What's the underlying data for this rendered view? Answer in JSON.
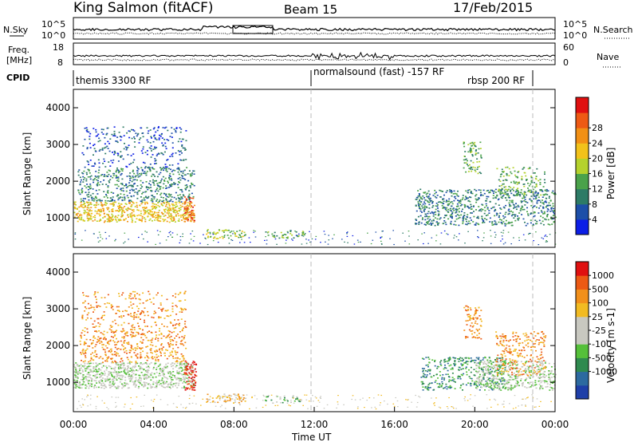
{
  "header": {
    "station": "King Salmon (fitACF)",
    "beam": "Beam 15",
    "date": "17/Feb/2015"
  },
  "noise_panel": {
    "left_label": "N.Sky",
    "right_label": "N.Search",
    "left_ticks": [
      "10^5",
      "10^0"
    ],
    "right_ticks": [
      "10^5",
      "10^0"
    ]
  },
  "freq_panel": {
    "left_label_line1": "Freq.",
    "left_label_line2": "[MHz]",
    "right_label": "Nave",
    "left_ticks": [
      "18",
      "8"
    ],
    "right_ticks": [
      "60",
      "0"
    ]
  },
  "cpid": {
    "label": "CPID",
    "segments": [
      {
        "name": "themis 3300 RF",
        "start_hour": 0,
        "end_hour": 12
      },
      {
        "name": "normalsound (fast) -157 RF",
        "start_hour": 12,
        "end_hour": 23
      },
      {
        "name": "rbsp 200 RF",
        "start_hour": 23,
        "end_hour": 24
      }
    ]
  },
  "chart_data": [
    {
      "type": "heatmap",
      "name": "power",
      "ylabel": "Slant Range [km]",
      "xlabel": "",
      "xlim": [
        0,
        24
      ],
      "ylim": [
        200,
        4500
      ],
      "yticks": [
        1000,
        2000,
        3000,
        4000
      ],
      "colorbar_label": "Power [dB]",
      "colorbar_ticks": [
        "4",
        "8",
        "12",
        "16",
        "20",
        "24",
        "28"
      ],
      "colorbar_colors": [
        "#0c1ee6",
        "#1d4fa8",
        "#2d7b66",
        "#4aa24a",
        "#b5d22c",
        "#f2c21a",
        "#f29015",
        "#ee5a14",
        "#e01010"
      ],
      "scatter_regions": [
        {
          "x": [
            0.0,
            6.0
          ],
          "y": [
            900,
            1450
          ],
          "level": 5,
          "density": 0.9
        },
        {
          "x": [
            0.2,
            6.0
          ],
          "y": [
            1450,
            2400
          ],
          "level": 2,
          "density": 0.5
        },
        {
          "x": [
            0.4,
            5.6
          ],
          "y": [
            2400,
            3500
          ],
          "level": 1,
          "density": 0.25
        },
        {
          "x": [
            5.5,
            6.0
          ],
          "y": [
            900,
            1600
          ],
          "level": 7,
          "density": 0.8
        },
        {
          "x": [
            6.6,
            8.6
          ],
          "y": [
            450,
            700
          ],
          "level": 4,
          "density": 0.6
        },
        {
          "x": [
            9.5,
            11.5
          ],
          "y": [
            450,
            650
          ],
          "level": 3,
          "density": 0.5
        },
        {
          "x": [
            17.0,
            24.0
          ],
          "y": [
            800,
            1800
          ],
          "level": 2,
          "density": 0.55
        },
        {
          "x": [
            19.4,
            20.3
          ],
          "y": [
            2200,
            3100
          ],
          "level": 3,
          "density": 0.5
        },
        {
          "x": [
            21.0,
            23.5
          ],
          "y": [
            1600,
            2400
          ],
          "level": 3,
          "density": 0.4
        }
      ]
    },
    {
      "type": "heatmap",
      "name": "velocity",
      "ylabel": "Slant Range [km]",
      "xlabel": "Time UT",
      "xlim": [
        0,
        24
      ],
      "ylim": [
        200,
        4500
      ],
      "yticks": [
        1000,
        2000,
        3000,
        4000
      ],
      "xticks": [
        "00:00",
        "04:00",
        "08:00",
        "12:00",
        "16:00",
        "20:00",
        "00:00"
      ],
      "colorbar_label": "Velocity [m s-1]",
      "colorbar_ticks": [
        "1000",
        "500",
        "100",
        "25",
        "-25",
        "-100",
        "-500",
        "-1000"
      ],
      "colorbar_colors": [
        "#1f3fa8",
        "#2d6aa0",
        "#2f8a4f",
        "#55c03a",
        "#c8c8c0",
        "#c8c8c0",
        "#f2bb22",
        "#f2901b",
        "#ec5a14",
        "#e01010"
      ],
      "scatter_regions": [
        {
          "x": [
            0.0,
            6.0
          ],
          "y": [
            850,
            1550
          ],
          "level": 4,
          "density": 0.9
        },
        {
          "x": [
            0.3,
            5.6
          ],
          "y": [
            1550,
            2400
          ],
          "level": 7,
          "density": 0.45
        },
        {
          "x": [
            0.4,
            5.6
          ],
          "y": [
            2400,
            3500
          ],
          "level": 7,
          "density": 0.25
        },
        {
          "x": [
            5.5,
            6.1
          ],
          "y": [
            800,
            1600
          ],
          "level": 9,
          "density": 0.8
        },
        {
          "x": [
            6.6,
            8.6
          ],
          "y": [
            450,
            700
          ],
          "level": 6,
          "density": 0.6
        },
        {
          "x": [
            9.5,
            11.5
          ],
          "y": [
            450,
            650
          ],
          "level": 3,
          "density": 0.4
        },
        {
          "x": [
            17.3,
            21.5
          ],
          "y": [
            800,
            1700
          ],
          "level": 2,
          "density": 0.5
        },
        {
          "x": [
            20.0,
            24.0
          ],
          "y": [
            800,
            1600
          ],
          "level": 4,
          "density": 0.7
        },
        {
          "x": [
            19.4,
            20.3
          ],
          "y": [
            2200,
            3100
          ],
          "level": 7,
          "density": 0.5
        },
        {
          "x": [
            21.0,
            23.5
          ],
          "y": [
            1200,
            2400
          ],
          "level": 7,
          "density": 0.4
        }
      ]
    }
  ]
}
